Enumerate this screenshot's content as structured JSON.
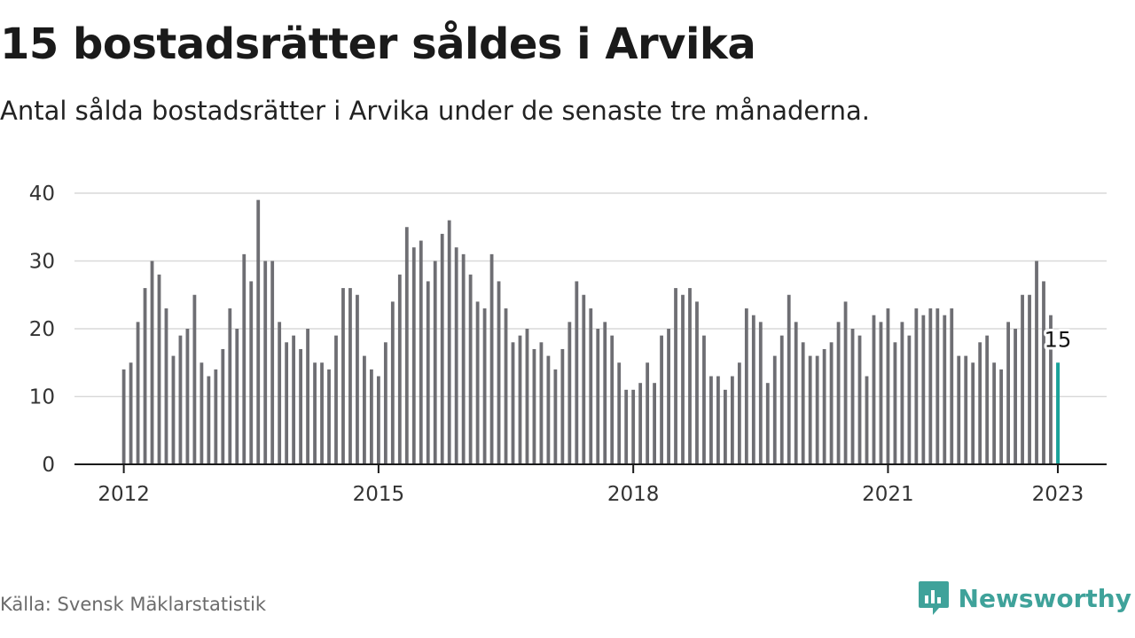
{
  "header": {
    "title": "15 bostadsrätter såldes i Arvika",
    "subtitle": "Antal sålda bostadsrätter i Arvika under de senaste tre månaderna."
  },
  "footer": {
    "source": "Källa: Svensk Mäklarstatistik",
    "brand": "Newsworthy",
    "brand_icon": "bar-chart-speech-bubble-icon"
  },
  "colors": {
    "bar": "#6e6e73",
    "highlight": "#1aa39a",
    "grid": "#d9d9d9",
    "axis": "#1a1a1a",
    "brand": "#3fa29a"
  },
  "chart_data": {
    "type": "bar",
    "title": "15 bostadsrätter såldes i Arvika",
    "subtitle": "Antal sålda bostadsrätter i Arvika under de senaste tre månaderna.",
    "xlabel": "",
    "ylabel": "",
    "ylim": [
      0,
      40
    ],
    "yticks": [
      0,
      10,
      20,
      30,
      40
    ],
    "xticks": [
      {
        "label": "2012",
        "index": 0
      },
      {
        "label": "2015",
        "index": 36
      },
      {
        "label": "2018",
        "index": 72
      },
      {
        "label": "2021",
        "index": 108
      },
      {
        "label": "2023",
        "index": 132
      }
    ],
    "start": "2012-01",
    "frequency": "monthly",
    "grid": true,
    "legend": "none",
    "highlight": {
      "index": 132,
      "label": "15"
    },
    "values": [
      14,
      15,
      21,
      26,
      30,
      28,
      23,
      16,
      19,
      20,
      25,
      15,
      13,
      14,
      17,
      23,
      20,
      31,
      27,
      39,
      30,
      30,
      21,
      18,
      19,
      17,
      20,
      15,
      15,
      14,
      19,
      26,
      26,
      25,
      16,
      14,
      13,
      18,
      24,
      28,
      35,
      32,
      33,
      27,
      30,
      34,
      36,
      32,
      31,
      28,
      24,
      23,
      31,
      27,
      23,
      18,
      19,
      20,
      17,
      18,
      16,
      14,
      17,
      21,
      27,
      25,
      23,
      20,
      21,
      19,
      15,
      11,
      11,
      12,
      15,
      12,
      19,
      20,
      26,
      25,
      26,
      24,
      19,
      13,
      13,
      11,
      13,
      15,
      23,
      22,
      21,
      12,
      16,
      19,
      25,
      21,
      18,
      16,
      16,
      17,
      18,
      21,
      24,
      20,
      19,
      13,
      22,
      21,
      23,
      18,
      21,
      19,
      23,
      22,
      23,
      23,
      22,
      23,
      16,
      16,
      15,
      18,
      19,
      15,
      14,
      21,
      20,
      25,
      25,
      30,
      27,
      22,
      15
    ]
  }
}
